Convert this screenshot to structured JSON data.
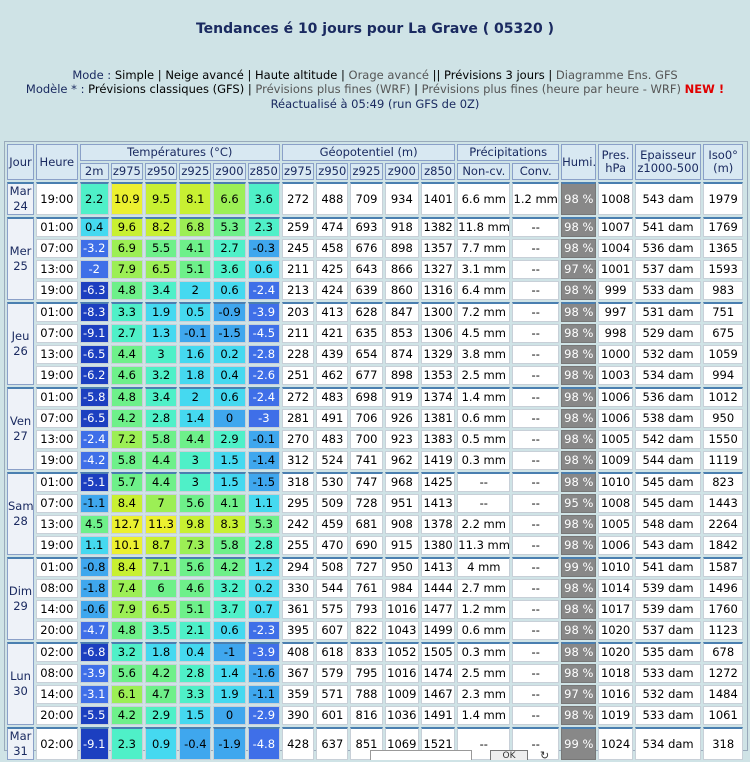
{
  "header": {
    "title": "Tendances é 10 jours pour La Grave ( 05320 )",
    "mode_label": "Mode :",
    "modes": [
      "Simple",
      "Neige avancé",
      "Haute altitude",
      "Orage avancé",
      "Prévisions 3 jours",
      "Diagramme Ens. GFS"
    ],
    "model_label": "Modèle * :",
    "models": [
      "Prévisions classiques (GFS)",
      "Prévisions plus fines (WRF)",
      "Prévisions plus fines (heure par heure - WRF)"
    ],
    "new_badge": "NEW !",
    "refresh": "Réactualisé à 05:49 (run GFS de 0Z)"
  },
  "table": {
    "col_jour": "Jour",
    "col_heure": "Heure",
    "group_temp": "Températures (°C)",
    "group_geo": "Géopotentiel (m)",
    "group_precip": "Précipitations",
    "col_humi": "Humi.",
    "col_pres": "Pres. hPa",
    "col_epais": "Epaisseur z1000-500",
    "col_iso": "Iso0° (m)",
    "temp_cols": [
      "2m",
      "z975",
      "z950",
      "z925",
      "z900",
      "z850"
    ],
    "geo_cols": [
      "z975",
      "z950",
      "z925",
      "z900",
      "z850"
    ],
    "precip_cols": [
      "Non-cv.",
      "Conv."
    ],
    "days": [
      {
        "label": "Mar 24",
        "rows": [
          {
            "h": "19:00",
            "t": [
              "2.2",
              "10.9",
              "9.5",
              "8.1",
              "6.6",
              "3.6"
            ],
            "g": [
              "272",
              "488",
              "709",
              "934",
              "1401"
            ],
            "p": [
              "6.6 mm",
              "1.2 mm"
            ],
            "hum": "98 %",
            "pres": "1008",
            "ep": "543 dam",
            "iso": "1979"
          }
        ]
      },
      {
        "label": "Mer 25",
        "rows": [
          {
            "h": "01:00",
            "t": [
              "0.4",
              "9.6",
              "8.2",
              "6.8",
              "5.3",
              "2.3"
            ],
            "g": [
              "259",
              "474",
              "693",
              "918",
              "1382"
            ],
            "p": [
              "11.8 mm",
              "--"
            ],
            "hum": "98 %",
            "pres": "1007",
            "ep": "541 dam",
            "iso": "1769"
          },
          {
            "h": "07:00",
            "t": [
              "-3.2",
              "6.9",
              "5.5",
              "4.1",
              "2.7",
              "-0.3"
            ],
            "g": [
              "245",
              "458",
              "676",
              "898",
              "1357"
            ],
            "p": [
              "7.7 mm",
              "--"
            ],
            "hum": "98 %",
            "pres": "1004",
            "ep": "536 dam",
            "iso": "1365"
          },
          {
            "h": "13:00",
            "t": [
              "-2",
              "7.9",
              "6.5",
              "5.1",
              "3.6",
              "0.6"
            ],
            "g": [
              "211",
              "425",
              "643",
              "866",
              "1327"
            ],
            "p": [
              "3.1 mm",
              "--"
            ],
            "hum": "97 %",
            "pres": "1001",
            "ep": "537 dam",
            "iso": "1593"
          },
          {
            "h": "19:00",
            "t": [
              "-6.3",
              "4.8",
              "3.4",
              "2",
              "0.6",
              "-2.4"
            ],
            "g": [
              "213",
              "424",
              "639",
              "860",
              "1316"
            ],
            "p": [
              "6.4 mm",
              "--"
            ],
            "hum": "98 %",
            "pres": "999",
            "ep": "533 dam",
            "iso": "983"
          }
        ]
      },
      {
        "label": "Jeu 26",
        "rows": [
          {
            "h": "01:00",
            "t": [
              "-8.3",
              "3.3",
              "1.9",
              "0.5",
              "-0.9",
              "-3.9"
            ],
            "g": [
              "203",
              "413",
              "628",
              "847",
              "1300"
            ],
            "p": [
              "7.2 mm",
              "--"
            ],
            "hum": "98 %",
            "pres": "997",
            "ep": "531 dam",
            "iso": "751"
          },
          {
            "h": "07:00",
            "t": [
              "-9.1",
              "2.7",
              "1.3",
              "-0.1",
              "-1.5",
              "-4.5"
            ],
            "g": [
              "211",
              "421",
              "635",
              "853",
              "1306"
            ],
            "p": [
              "4.5 mm",
              "--"
            ],
            "hum": "98 %",
            "pres": "998",
            "ep": "529 dam",
            "iso": "675"
          },
          {
            "h": "13:00",
            "t": [
              "-6.5",
              "4.4",
              "3",
              "1.6",
              "0.2",
              "-2.8"
            ],
            "g": [
              "228",
              "439",
              "654",
              "874",
              "1329"
            ],
            "p": [
              "3.8 mm",
              "--"
            ],
            "hum": "98 %",
            "pres": "1000",
            "ep": "532 dam",
            "iso": "1059"
          },
          {
            "h": "19:00",
            "t": [
              "-6.2",
              "4.6",
              "3.2",
              "1.8",
              "0.4",
              "-2.6"
            ],
            "g": [
              "251",
              "462",
              "677",
              "898",
              "1353"
            ],
            "p": [
              "2.5 mm",
              "--"
            ],
            "hum": "98 %",
            "pres": "1003",
            "ep": "534 dam",
            "iso": "994"
          }
        ]
      },
      {
        "label": "Ven 27",
        "rows": [
          {
            "h": "01:00",
            "t": [
              "-5.8",
              "4.8",
              "3.4",
              "2",
              "0.6",
              "-2.4"
            ],
            "g": [
              "272",
              "483",
              "698",
              "919",
              "1374"
            ],
            "p": [
              "1.4 mm",
              "--"
            ],
            "hum": "98 %",
            "pres": "1006",
            "ep": "536 dam",
            "iso": "1012"
          },
          {
            "h": "07:00",
            "t": [
              "-6.5",
              "4.2",
              "2.8",
              "1.4",
              "0",
              "-3"
            ],
            "g": [
              "281",
              "491",
              "706",
              "926",
              "1381"
            ],
            "p": [
              "0.6 mm",
              "--"
            ],
            "hum": "98 %",
            "pres": "1006",
            "ep": "538 dam",
            "iso": "950"
          },
          {
            "h": "13:00",
            "t": [
              "-2.4",
              "7.2",
              "5.8",
              "4.4",
              "2.9",
              "-0.1"
            ],
            "g": [
              "270",
              "483",
              "700",
              "923",
              "1383"
            ],
            "p": [
              "0.5 mm",
              "--"
            ],
            "hum": "98 %",
            "pres": "1005",
            "ep": "542 dam",
            "iso": "1550"
          },
          {
            "h": "19:00",
            "t": [
              "-4.2",
              "5.8",
              "4.4",
              "3",
              "1.5",
              "-1.4"
            ],
            "g": [
              "312",
              "524",
              "741",
              "962",
              "1419"
            ],
            "p": [
              "0.3 mm",
              "--"
            ],
            "hum": "98 %",
            "pres": "1009",
            "ep": "544 dam",
            "iso": "1119"
          }
        ]
      },
      {
        "label": "Sam 28",
        "rows": [
          {
            "h": "01:00",
            "t": [
              "-5.1",
              "5.7",
              "4.4",
              "3",
              "1.5",
              "-1.5"
            ],
            "g": [
              "318",
              "530",
              "747",
              "968",
              "1425"
            ],
            "p": [
              "--",
              "--"
            ],
            "hum": "98 %",
            "pres": "1010",
            "ep": "545 dam",
            "iso": "823"
          },
          {
            "h": "07:00",
            "t": [
              "-1.1",
              "8.4",
              "7",
              "5.6",
              "4.1",
              "1.1"
            ],
            "g": [
              "295",
              "509",
              "728",
              "951",
              "1413"
            ],
            "p": [
              "--",
              "--"
            ],
            "hum": "95 %",
            "pres": "1008",
            "ep": "545 dam",
            "iso": "1443"
          },
          {
            "h": "13:00",
            "t": [
              "4.5",
              "12.7",
              "11.3",
              "9.8",
              "8.3",
              "5.3"
            ],
            "g": [
              "242",
              "459",
              "681",
              "908",
              "1378"
            ],
            "p": [
              "2.2 mm",
              "--"
            ],
            "hum": "98 %",
            "pres": "1005",
            "ep": "548 dam",
            "iso": "2264"
          },
          {
            "h": "19:00",
            "t": [
              "1.1",
              "10.1",
              "8.7",
              "7.3",
              "5.8",
              "2.8"
            ],
            "g": [
              "255",
              "470",
              "690",
              "915",
              "1380"
            ],
            "p": [
              "11.3 mm",
              "--"
            ],
            "hum": "98 %",
            "pres": "1006",
            "ep": "543 dam",
            "iso": "1842"
          }
        ]
      },
      {
        "label": "Dim 29",
        "rows": [
          {
            "h": "01:00",
            "t": [
              "-0.8",
              "8.4",
              "7.1",
              "5.6",
              "4.2",
              "1.2"
            ],
            "g": [
              "294",
              "508",
              "727",
              "950",
              "1413"
            ],
            "p": [
              "4 mm",
              "--"
            ],
            "hum": "99 %",
            "pres": "1010",
            "ep": "541 dam",
            "iso": "1587"
          },
          {
            "h": "08:00",
            "t": [
              "-1.8",
              "7.4",
              "6",
              "4.6",
              "3.2",
              "0.2"
            ],
            "g": [
              "330",
              "544",
              "761",
              "984",
              "1444"
            ],
            "p": [
              "2.7 mm",
              "--"
            ],
            "hum": "98 %",
            "pres": "1014",
            "ep": "539 dam",
            "iso": "1496"
          },
          {
            "h": "14:00",
            "t": [
              "-0.6",
              "7.9",
              "6.5",
              "5.1",
              "3.7",
              "0.7"
            ],
            "g": [
              "361",
              "575",
              "793",
              "1016",
              "1477"
            ],
            "p": [
              "1.2 mm",
              "--"
            ],
            "hum": "98 %",
            "pres": "1017",
            "ep": "539 dam",
            "iso": "1760"
          },
          {
            "h": "20:00",
            "t": [
              "-4.7",
              "4.8",
              "3.5",
              "2.1",
              "0.6",
              "-2.3"
            ],
            "g": [
              "395",
              "607",
              "822",
              "1043",
              "1499"
            ],
            "p": [
              "0.6 mm",
              "--"
            ],
            "hum": "98 %",
            "pres": "1020",
            "ep": "537 dam",
            "iso": "1123"
          }
        ]
      },
      {
        "label": "Lun 30",
        "rows": [
          {
            "h": "02:00",
            "t": [
              "-6.8",
              "3.2",
              "1.8",
              "0.4",
              "-1",
              "-3.9"
            ],
            "g": [
              "408",
              "618",
              "833",
              "1052",
              "1505"
            ],
            "p": [
              "0.3 mm",
              "--"
            ],
            "hum": "98 %",
            "pres": "1020",
            "ep": "535 dam",
            "iso": "678"
          },
          {
            "h": "08:00",
            "t": [
              "-3.9",
              "5.6",
              "4.2",
              "2.8",
              "1.4",
              "-1.6"
            ],
            "g": [
              "367",
              "579",
              "795",
              "1016",
              "1474"
            ],
            "p": [
              "2.5 mm",
              "--"
            ],
            "hum": "98 %",
            "pres": "1018",
            "ep": "533 dam",
            "iso": "1272"
          },
          {
            "h": "14:00",
            "t": [
              "-3.1",
              "6.1",
              "4.7",
              "3.3",
              "1.9",
              "-1.1"
            ],
            "g": [
              "359",
              "571",
              "788",
              "1009",
              "1467"
            ],
            "p": [
              "2.3 mm",
              "--"
            ],
            "hum": "97 %",
            "pres": "1016",
            "ep": "532 dam",
            "iso": "1484"
          },
          {
            "h": "20:00",
            "t": [
              "-5.5",
              "4.2",
              "2.9",
              "1.5",
              "0",
              "-2.9"
            ],
            "g": [
              "390",
              "601",
              "816",
              "1036",
              "1491"
            ],
            "p": [
              "1.4 mm",
              "--"
            ],
            "hum": "98 %",
            "pres": "1019",
            "ep": "533 dam",
            "iso": "1061"
          }
        ]
      },
      {
        "label": "Mar 31",
        "rows": [
          {
            "h": "02:00",
            "t": [
              "-9.1",
              "2.3",
              "0.9",
              "-0.4",
              "-1.9",
              "-4.8"
            ],
            "g": [
              "428",
              "637",
              "851",
              "1069",
              "1521"
            ],
            "p": [
              "--",
              "--"
            ],
            "hum": "99 %",
            "pres": "1024",
            "ep": "534 dam",
            "iso": "318"
          }
        ]
      }
    ]
  },
  "footer": {
    "ok_label": "OK",
    "refresh_icon": "refresh-icon"
  }
}
